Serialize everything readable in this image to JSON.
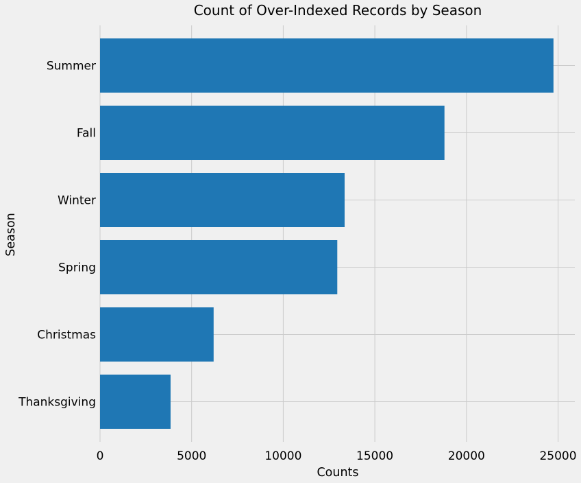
{
  "chart_data": {
    "type": "bar",
    "orientation": "horizontal",
    "title": "Count of Over-Indexed Records by Season",
    "xlabel": "Counts",
    "ylabel": "Season",
    "categories": [
      "Summer",
      "Fall",
      "Winter",
      "Spring",
      "Christmas",
      "Thanksgiving"
    ],
    "values": [
      24750,
      18800,
      13350,
      12950,
      6200,
      3850
    ],
    "xlim": [
      0,
      26000
    ],
    "xticks": [
      0,
      5000,
      10000,
      15000,
      20000,
      25000
    ],
    "xtick_labels": [
      "0",
      "5000",
      "10000",
      "15000",
      "20000",
      "25000"
    ],
    "grid": true,
    "bar_color": "#1f77b4",
    "background_color": "#f0f0f0"
  }
}
